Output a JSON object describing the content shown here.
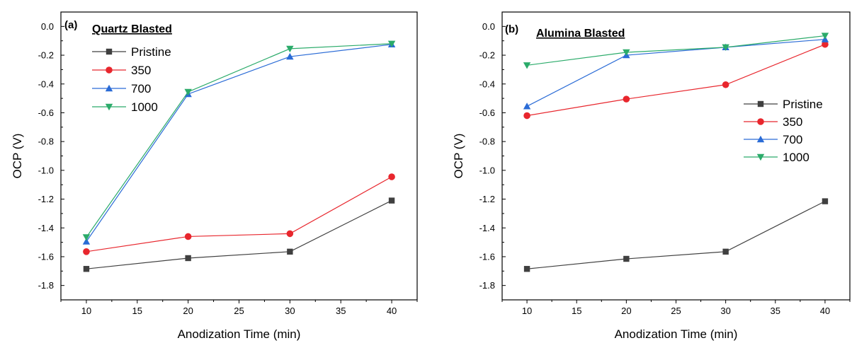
{
  "chart_data": [
    {
      "type": "line",
      "panel_label": "(a)",
      "title": "Quartz Blasted",
      "xlabel": "Anodization Time (min)",
      "ylabel": "OCP (V)",
      "x": [
        10,
        20,
        30,
        40
      ],
      "xlim": [
        7.5,
        42.5
      ],
      "ylim": [
        -1.9,
        0.1
      ],
      "xticks": [
        "10",
        "15",
        "20",
        "25",
        "30",
        "35",
        "40"
      ],
      "yticks": [
        "0.0",
        "-0.2",
        "-0.4",
        "-0.6",
        "-0.8",
        "-1.0",
        "-1.2",
        "-1.4",
        "-1.6",
        "-1.8"
      ],
      "legend_position": "top-left",
      "series": [
        {
          "name": "Pristine",
          "color": "#404040",
          "marker": "square",
          "values": [
            -1.685,
            -1.61,
            -1.565,
            -1.21
          ]
        },
        {
          "name": "350",
          "color": "#e8262d",
          "marker": "circle",
          "values": [
            -1.565,
            -1.46,
            -1.44,
            -1.045
          ]
        },
        {
          "name": "700",
          "color": "#2a6bd6",
          "marker": "triangle-up",
          "values": [
            -1.495,
            -0.47,
            -0.21,
            -0.125
          ]
        },
        {
          "name": "1000",
          "color": "#2bab6a",
          "marker": "triangle-down",
          "values": [
            -1.465,
            -0.455,
            -0.155,
            -0.12
          ]
        }
      ]
    },
    {
      "type": "line",
      "panel_label": "(b)",
      "title": "Alumina Blasted",
      "xlabel": "Anodization Time (min)",
      "ylabel": "OCP (V)",
      "x": [
        10,
        20,
        30,
        40
      ],
      "xlim": [
        7.5,
        42.5
      ],
      "ylim": [
        -1.9,
        0.1
      ],
      "xticks": [
        "10",
        "15",
        "20",
        "25",
        "30",
        "35",
        "40"
      ],
      "yticks": [
        "0.0",
        "-0.2",
        "-0.4",
        "-0.6",
        "-0.8",
        "-1.0",
        "-1.2",
        "-1.4",
        "-1.6",
        "-1.8"
      ],
      "legend_position": "right",
      "series": [
        {
          "name": "Pristine",
          "color": "#404040",
          "marker": "square",
          "values": [
            -1.685,
            -1.615,
            -1.565,
            -1.215
          ]
        },
        {
          "name": "350",
          "color": "#e8262d",
          "marker": "circle",
          "values": [
            -0.62,
            -0.505,
            -0.405,
            -0.125
          ]
        },
        {
          "name": "700",
          "color": "#2a6bd6",
          "marker": "triangle-up",
          "values": [
            -0.555,
            -0.2,
            -0.145,
            -0.09
          ]
        },
        {
          "name": "1000",
          "color": "#2bab6a",
          "marker": "triangle-down",
          "values": [
            -0.27,
            -0.18,
            -0.145,
            -0.065
          ]
        }
      ]
    }
  ]
}
